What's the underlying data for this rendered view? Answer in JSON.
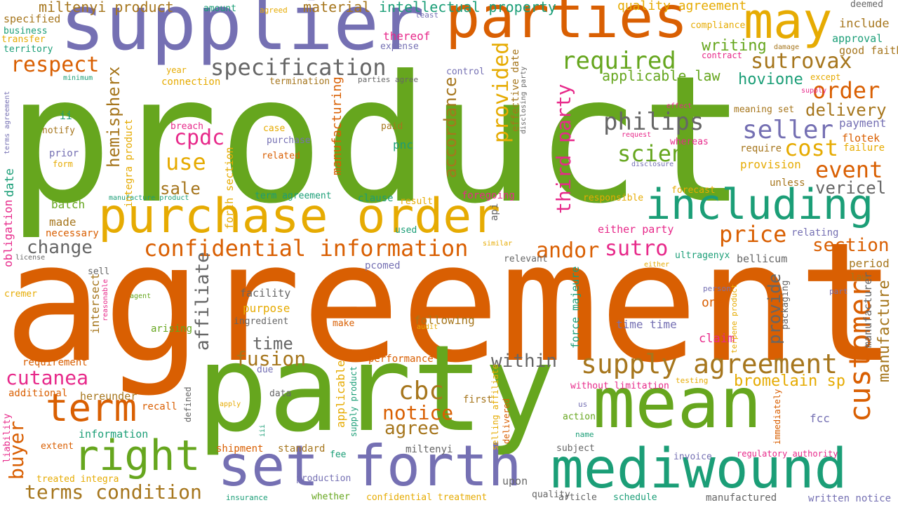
{
  "palette": {
    "green": "#66a61e",
    "orange": "#d95f02",
    "purple": "#7570b3",
    "teal": "#1b9e77",
    "gold": "#e6ab02",
    "pink": "#e7298a",
    "brown": "#a6761d",
    "gray": "#666666"
  },
  "words": [
    {
      "text": "product",
      "color": "green"
    },
    {
      "text": "agreement",
      "color": "orange"
    },
    {
      "text": "party",
      "color": "green"
    },
    {
      "text": "supplier",
      "color": "purple"
    },
    {
      "text": "parties",
      "color": "orange"
    },
    {
      "text": "may",
      "color": "gold"
    },
    {
      "text": "purchase order",
      "color": "gold"
    },
    {
      "text": "including",
      "color": "teal"
    },
    {
      "text": "mean",
      "color": "green"
    },
    {
      "text": "set forth",
      "color": "purple"
    },
    {
      "text": "mediwound",
      "color": "teal"
    },
    {
      "text": "right",
      "color": "green"
    },
    {
      "text": "term",
      "color": "orange"
    },
    {
      "text": "customer",
      "color": "orange"
    },
    {
      "text": "supply agreement",
      "color": "brown"
    },
    {
      "text": "confidential information",
      "color": "orange"
    },
    {
      "text": "specification",
      "color": "gray"
    },
    {
      "text": "respect",
      "color": "orange"
    },
    {
      "text": "required",
      "color": "green"
    },
    {
      "text": "sutrovax",
      "color": "brown"
    },
    {
      "text": "order",
      "color": "orange"
    },
    {
      "text": "philips",
      "color": "gray"
    },
    {
      "text": "seller",
      "color": "purple"
    },
    {
      "text": "scien",
      "color": "green"
    },
    {
      "text": "cost",
      "color": "gold"
    },
    {
      "text": "event",
      "color": "orange"
    },
    {
      "text": "price",
      "color": "orange"
    },
    {
      "text": "sutro",
      "color": "pink"
    },
    {
      "text": "andor",
      "color": "orange"
    },
    {
      "text": "section",
      "color": "orange"
    },
    {
      "text": "vericel",
      "color": "gray"
    },
    {
      "text": "delivery",
      "color": "brown"
    },
    {
      "text": "hovione",
      "color": "teal"
    },
    {
      "text": "writing",
      "color": "green"
    },
    {
      "text": "applicable law",
      "color": "green"
    },
    {
      "text": "cutanea",
      "color": "pink"
    },
    {
      "text": "buyer",
      "color": "orange"
    },
    {
      "text": "terms condition",
      "color": "brown"
    },
    {
      "text": "change",
      "color": "gray"
    },
    {
      "text": "use",
      "color": "gold"
    },
    {
      "text": "sale",
      "color": "brown"
    },
    {
      "text": "cpdc",
      "color": "pink"
    },
    {
      "text": "cbc",
      "color": "brown"
    },
    {
      "text": "notice",
      "color": "orange"
    },
    {
      "text": "agree",
      "color": "brown"
    },
    {
      "text": "fusion",
      "color": "brown"
    },
    {
      "text": "time",
      "color": "gray"
    },
    {
      "text": "within",
      "color": "gray"
    },
    {
      "text": "provided",
      "color": "gold"
    },
    {
      "text": "accordance",
      "color": "brown"
    },
    {
      "text": "third party",
      "color": "pink"
    },
    {
      "text": "affiliate",
      "color": "gray"
    },
    {
      "text": "hemispherx",
      "color": "brown"
    },
    {
      "text": "bromelain sp",
      "color": "gold"
    },
    {
      "text": "manufacture",
      "color": "brown"
    },
    {
      "text": "provide",
      "color": "gray"
    },
    {
      "text": "miltenyi product",
      "color": "brown"
    },
    {
      "text": "intellectual property",
      "color": "teal"
    },
    {
      "text": "material",
      "color": "brown"
    },
    {
      "text": "quality agreement",
      "color": "gold"
    },
    {
      "text": "deemed",
      "color": "gray"
    },
    {
      "text": "include",
      "color": "brown"
    },
    {
      "text": "approval",
      "color": "teal"
    },
    {
      "text": "good faith",
      "color": "brown"
    },
    {
      "text": "specified",
      "color": "brown"
    },
    {
      "text": "business",
      "color": "teal"
    },
    {
      "text": "transfer",
      "color": "gold"
    },
    {
      "text": "territory",
      "color": "teal"
    },
    {
      "text": "amount",
      "color": "teal"
    },
    {
      "text": "agreed",
      "color": "gold"
    },
    {
      "text": "least",
      "color": "purple"
    },
    {
      "text": "thereof",
      "color": "pink"
    },
    {
      "text": "expense",
      "color": "purple"
    },
    {
      "text": "compliance",
      "color": "gold"
    },
    {
      "text": "contract",
      "color": "pink"
    },
    {
      "text": "damage",
      "color": "brown"
    },
    {
      "text": "payment",
      "color": "purple"
    },
    {
      "text": "flotek",
      "color": "orange"
    },
    {
      "text": "failure",
      "color": "gold"
    },
    {
      "text": "meaning set",
      "color": "brown"
    },
    {
      "text": "require",
      "color": "brown"
    },
    {
      "text": "provision",
      "color": "gold"
    },
    {
      "text": "unless",
      "color": "brown"
    },
    {
      "text": "relating",
      "color": "purple"
    },
    {
      "text": "period",
      "color": "brown"
    },
    {
      "text": "law",
      "color": "brown"
    },
    {
      "text": "manufacturer",
      "color": "gray"
    },
    {
      "text": "ultragenyx",
      "color": "teal"
    },
    {
      "text": "bellicum",
      "color": "gray"
    },
    {
      "text": "one",
      "color": "orange"
    },
    {
      "text": "time time",
      "color": "purple"
    },
    {
      "text": "claim",
      "color": "pink"
    },
    {
      "text": "force majeure",
      "color": "teal"
    },
    {
      "text": "terpene product",
      "color": "gold"
    },
    {
      "text": "packaging",
      "color": "gray"
    },
    {
      "text": "person",
      "color": "purple"
    },
    {
      "text": "part",
      "color": "purple"
    },
    {
      "text": "year",
      "color": "gold"
    },
    {
      "text": "connection",
      "color": "gold"
    },
    {
      "text": "minimum",
      "color": "teal"
    },
    {
      "text": "termination",
      "color": "brown"
    },
    {
      "text": "parties agree",
      "color": "gray"
    },
    {
      "text": "control",
      "color": "purple"
    },
    {
      "text": "effective date",
      "color": "brown"
    },
    {
      "text": "disclosing party",
      "color": "gray"
    },
    {
      "text": "except",
      "color": "gold"
    },
    {
      "text": "supply",
      "color": "pink"
    },
    {
      "text": "effect",
      "color": "pink"
    },
    {
      "text": "request",
      "color": "pink"
    },
    {
      "text": "whereas",
      "color": "pink"
    },
    {
      "text": "disclosure",
      "color": "purple"
    },
    {
      "text": "forecast",
      "color": "gold"
    },
    {
      "text": "responsible",
      "color": "gold"
    },
    {
      "text": "either party",
      "color": "pink"
    },
    {
      "text": "foregoing",
      "color": "pink"
    },
    {
      "text": "api",
      "color": "gray"
    },
    {
      "text": "similar",
      "color": "gold"
    },
    {
      "text": "relevant",
      "color": "gray"
    },
    {
      "text": "either",
      "color": "gold"
    },
    {
      "text": "breach",
      "color": "pink"
    },
    {
      "text": "case",
      "color": "gold"
    },
    {
      "text": "purchase",
      "color": "purple"
    },
    {
      "text": "related",
      "color": "orange"
    },
    {
      "text": "paid",
      "color": "brown"
    },
    {
      "text": "pnc",
      "color": "teal"
    },
    {
      "text": "integra product",
      "color": "gold"
    },
    {
      "text": "forth section",
      "color": "gold"
    },
    {
      "text": "manufacturing",
      "color": "orange"
    },
    {
      "text": "term agreement",
      "color": "teal"
    },
    {
      "text": "clause",
      "color": "teal"
    },
    {
      "text": "result",
      "color": "gold"
    },
    {
      "text": "used",
      "color": "teal"
    },
    {
      "text": "terms agreement",
      "color": "purple"
    },
    {
      "text": "notify",
      "color": "brown"
    },
    {
      "text": "ii",
      "color": "teal"
    },
    {
      "text": "prior",
      "color": "purple"
    },
    {
      "text": "form",
      "color": "gold"
    },
    {
      "text": "date",
      "color": "teal"
    },
    {
      "text": "obligation",
      "color": "pink"
    },
    {
      "text": "license",
      "color": "gray"
    },
    {
      "text": "batch",
      "color": "green"
    },
    {
      "text": "manufacture product",
      "color": "teal"
    },
    {
      "text": "made",
      "color": "brown"
    },
    {
      "text": "necessary",
      "color": "orange"
    },
    {
      "text": "sell",
      "color": "gray"
    },
    {
      "text": "cremer",
      "color": "gold"
    },
    {
      "text": "reasonable",
      "color": "pink"
    },
    {
      "text": "agent",
      "color": "green"
    },
    {
      "text": "intersect",
      "color": "brown"
    },
    {
      "text": "facility",
      "color": "gray"
    },
    {
      "text": "purpose",
      "color": "gold"
    },
    {
      "text": "ingredient",
      "color": "gray"
    },
    {
      "text": "arising",
      "color": "green"
    },
    {
      "text": "make",
      "color": "orange"
    },
    {
      "text": "following",
      "color": "brown"
    },
    {
      "text": "audit",
      "color": "gold"
    },
    {
      "text": "pcomed",
      "color": "purple"
    },
    {
      "text": "requirement",
      "color": "orange"
    },
    {
      "text": "performance",
      "color": "orange"
    },
    {
      "text": "due",
      "color": "purple"
    },
    {
      "text": "additional",
      "color": "orange"
    },
    {
      "text": "hereunder",
      "color": "brown"
    },
    {
      "text": "recall",
      "color": "orange"
    },
    {
      "text": "data",
      "color": "gray"
    },
    {
      "text": "defined",
      "color": "gray"
    },
    {
      "text": "applicable",
      "color": "gold"
    },
    {
      "text": "supply product",
      "color": "teal"
    },
    {
      "text": "first",
      "color": "brown"
    },
    {
      "text": "selling affiliate",
      "color": "gold"
    },
    {
      "text": "delivered",
      "color": "orange"
    },
    {
      "text": "apply",
      "color": "gold"
    },
    {
      "text": "information",
      "color": "teal"
    },
    {
      "text": "iii",
      "color": "teal"
    },
    {
      "text": "liability",
      "color": "pink"
    },
    {
      "text": "extent",
      "color": "orange"
    },
    {
      "text": "treated integra",
      "color": "gold"
    },
    {
      "text": "shipment",
      "color": "orange"
    },
    {
      "text": "standard",
      "color": "brown"
    },
    {
      "text": "fee",
      "color": "teal"
    },
    {
      "text": "miltenyi",
      "color": "gray"
    },
    {
      "text": "production",
      "color": "purple"
    },
    {
      "text": "upon",
      "color": "gray"
    },
    {
      "text": "insurance",
      "color": "teal"
    },
    {
      "text": "whether",
      "color": "green"
    },
    {
      "text": "confidential treatment",
      "color": "gold"
    },
    {
      "text": "quality",
      "color": "gray"
    },
    {
      "text": "article",
      "color": "gray"
    },
    {
      "text": "schedule",
      "color": "teal"
    },
    {
      "text": "manufactured",
      "color": "gray"
    },
    {
      "text": "written notice",
      "color": "purple"
    },
    {
      "text": "without limitation",
      "color": "pink"
    },
    {
      "text": "testing",
      "color": "gold"
    },
    {
      "text": "immediately",
      "color": "orange"
    },
    {
      "text": "action",
      "color": "green"
    },
    {
      "text": "us",
      "color": "purple"
    },
    {
      "text": "name",
      "color": "teal"
    },
    {
      "text": "subject",
      "color": "gray"
    },
    {
      "text": "fcc",
      "color": "purple"
    },
    {
      "text": "invoice",
      "color": "purple"
    },
    {
      "text": "regulatory authority",
      "color": "pink"
    }
  ]
}
